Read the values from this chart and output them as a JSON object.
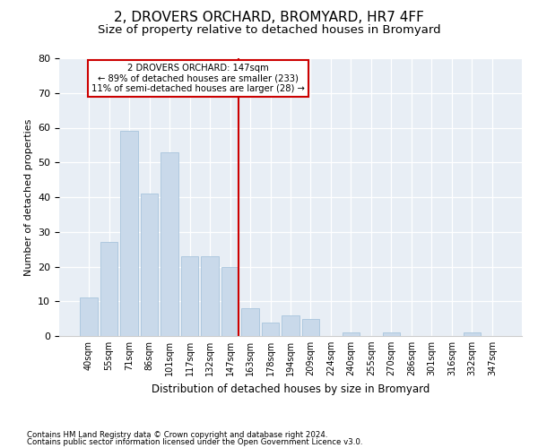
{
  "title1": "2, DROVERS ORCHARD, BROMYARD, HR7 4FF",
  "title2": "Size of property relative to detached houses in Bromyard",
  "xlabel": "Distribution of detached houses by size in Bromyard",
  "ylabel": "Number of detached properties",
  "categories": [
    "40sqm",
    "55sqm",
    "71sqm",
    "86sqm",
    "101sqm",
    "117sqm",
    "132sqm",
    "147sqm",
    "163sqm",
    "178sqm",
    "194sqm",
    "209sqm",
    "224sqm",
    "240sqm",
    "255sqm",
    "270sqm",
    "286sqm",
    "301sqm",
    "316sqm",
    "332sqm",
    "347sqm"
  ],
  "values": [
    11,
    27,
    59,
    41,
    53,
    23,
    23,
    20,
    8,
    4,
    6,
    5,
    0,
    1,
    0,
    1,
    0,
    0,
    0,
    1,
    0
  ],
  "bar_color": "#c9d9ea",
  "bar_edge_color": "#a8c4dc",
  "vline_color": "#cc0000",
  "box_text_line1": "2 DROVERS ORCHARD: 147sqm",
  "box_text_line2": "← 89% of detached houses are smaller (233)",
  "box_text_line3": "11% of semi-detached houses are larger (28) →",
  "box_color": "#cc0000",
  "ylim": [
    0,
    80
  ],
  "yticks": [
    0,
    10,
    20,
    30,
    40,
    50,
    60,
    70,
    80
  ],
  "footnote1": "Contains HM Land Registry data © Crown copyright and database right 2024.",
  "footnote2": "Contains public sector information licensed under the Open Government Licence v3.0.",
  "bg_color": "#e8eef5",
  "title1_fontsize": 11,
  "title2_fontsize": 9.5
}
